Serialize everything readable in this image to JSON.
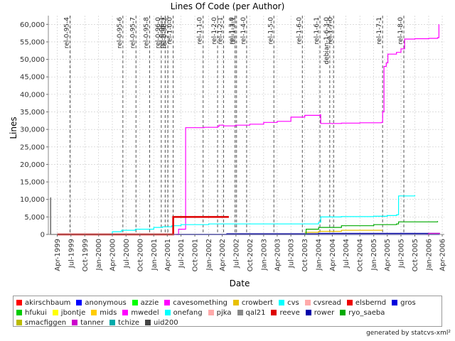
{
  "chart_data": {
    "type": "line",
    "title": "Lines Of Code (per Author)",
    "xlabel": "Date",
    "ylabel": "Lines",
    "ylim": [
      0,
      62500
    ],
    "xlim": [
      "1999-02-01",
      "2006-04-15"
    ],
    "y_ticks": [
      0,
      5000,
      10000,
      15000,
      20000,
      25000,
      30000,
      35000,
      40000,
      45000,
      50000,
      55000,
      60000
    ],
    "y_tick_labels": [
      "0",
      "5,000",
      "10,000",
      "15,000",
      "20,000",
      "25,000",
      "30,000",
      "35,000",
      "40,000",
      "45,000",
      "50,000",
      "55,000",
      "60,000"
    ],
    "x_ticks": [
      "1999-04-01",
      "1999-07-01",
      "1999-10-01",
      "2000-01-01",
      "2000-04-01",
      "2000-07-01",
      "2000-10-01",
      "2001-01-01",
      "2001-04-01",
      "2001-07-01",
      "2001-10-01",
      "2002-01-01",
      "2002-04-01",
      "2002-07-01",
      "2002-10-01",
      "2003-01-01",
      "2003-04-01",
      "2003-07-01",
      "2003-10-01",
      "2004-01-01",
      "2004-04-01",
      "2004-07-01",
      "2004-10-01",
      "2005-01-01",
      "2005-04-01",
      "2005-07-01",
      "2005-10-01",
      "2006-01-01",
      "2006-04-01"
    ],
    "x_tick_labels": [
      "Apr-1999",
      "Jul-1999",
      "Oct-1999",
      "Jan-2000",
      "Apr-2000",
      "Jul-2000",
      "Oct-2000",
      "Jan-2001",
      "Apr-2001",
      "Jul-2001",
      "Oct-2001",
      "Jan-2002",
      "Apr-2002",
      "Jul-2002",
      "Oct-2002",
      "Jan-2003",
      "Apr-2003",
      "Jul-2003",
      "Oct-2003",
      "Jan-2004",
      "Apr-2004",
      "Jul-2004",
      "Oct-2004",
      "Jan-2005",
      "Apr-2005",
      "Jul-2005",
      "Oct-2005",
      "Jan-2006",
      "Apr-2006"
    ],
    "grid": true,
    "legend_position": "bottom",
    "markers": [
      {
        "label": "rel-0-95-4",
        "date": "1999-06-25"
      },
      {
        "label": "rel-0-95-6",
        "date": "2000-06-10"
      },
      {
        "label": "rel-0-95-7",
        "date": "2000-09-05"
      },
      {
        "label": "rel-0-95-8",
        "date": "2000-12-05"
      },
      {
        "label": "rel-0-96-0",
        "date": "2001-02-20"
      },
      {
        "label": "rel-0-96-1",
        "date": "2001-03-18"
      },
      {
        "label": "rel-0-96-2",
        "date": "2001-04-05"
      },
      {
        "label": "rel-1-0-0",
        "date": "2001-05-10"
      },
      {
        "label": "rel-1-1-0",
        "date": "2001-11-25"
      },
      {
        "label": "rel-1-2-0",
        "date": "2002-03-01"
      },
      {
        "label": "rel-1-2-1",
        "date": "2002-04-10"
      },
      {
        "label": "rel-1-3-0",
        "date": "2002-06-25"
      },
      {
        "label": "rel-1-3-1",
        "date": "2002-07-05"
      },
      {
        "label": "rel-1-4-0",
        "date": "2002-09-10"
      },
      {
        "label": "rel-1-5-0",
        "date": "2003-03-10"
      },
      {
        "label": "rel-1-6-0",
        "date": "2003-09-15"
      },
      {
        "label": "rel-1-6-1",
        "date": "2004-01-10"
      },
      {
        "label": "debian-1-6-3-0",
        "date": "2004-03-15"
      },
      {
        "label": "rel-1-7-0",
        "date": "2004-04-10"
      },
      {
        "label": "rel-1-7-1",
        "date": "2005-03-01"
      },
      {
        "label": "rel-1-8-0",
        "date": "2005-07-20"
      }
    ],
    "series": [
      {
        "name": "akirschbaum",
        "color": "#ff0000",
        "points": []
      },
      {
        "name": "anonymous",
        "color": "#0000ff",
        "points": [
          [
            "1999-04-01",
            0
          ],
          [
            "2006-03-15",
            0
          ]
        ]
      },
      {
        "name": "azzie",
        "color": "#00ff00",
        "points": []
      },
      {
        "name": "cavesomething",
        "color": "#ff00ff",
        "points": []
      },
      {
        "name": "crowbert",
        "color": "#e8c000",
        "points": [
          [
            "2003-10-01",
            600
          ],
          [
            "2004-01-01",
            900
          ],
          [
            "2004-06-01",
            1200
          ],
          [
            "2005-03-01",
            1200
          ]
        ]
      },
      {
        "name": "cvs",
        "color": "#00ffff",
        "points": []
      },
      {
        "name": "cvsread",
        "color": "#ffaaaa",
        "points": []
      },
      {
        "name": "elsbernd",
        "color": "#ee0000",
        "points": []
      },
      {
        "name": "gros",
        "color": "#0000dd",
        "points": [
          [
            "1999-04-01",
            0
          ],
          [
            "2006-03-15",
            0
          ]
        ]
      },
      {
        "name": "hfukui",
        "color": "#00cc00",
        "points": []
      },
      {
        "name": "jbontje",
        "color": "#ffff00",
        "points": []
      },
      {
        "name": "mids",
        "color": "#ffcc00",
        "points": []
      },
      {
        "name": "mwedel",
        "color": "#ff00ff",
        "points": [
          [
            "1999-04-01",
            0
          ],
          [
            "2001-06-01",
            0
          ],
          [
            "2001-06-15",
            1500
          ],
          [
            "2001-08-01",
            30500
          ],
          [
            "2001-12-01",
            30600
          ],
          [
            "2002-03-01",
            30800
          ],
          [
            "2002-03-10",
            31200
          ],
          [
            "2002-04-10",
            31000
          ],
          [
            "2002-07-01",
            31200
          ],
          [
            "2002-10-01",
            31500
          ],
          [
            "2003-01-01",
            32000
          ],
          [
            "2003-04-01",
            32300
          ],
          [
            "2003-07-01",
            33500
          ],
          [
            "2003-10-01",
            34000
          ],
          [
            "2004-01-10",
            34200
          ],
          [
            "2004-01-15",
            31700
          ],
          [
            "2004-06-01",
            31800
          ],
          [
            "2004-10-01",
            31900
          ],
          [
            "2005-02-20",
            32000
          ],
          [
            "2005-03-01",
            35000
          ],
          [
            "2005-03-10",
            48000
          ],
          [
            "2005-03-25",
            49000
          ],
          [
            "2005-04-05",
            51500
          ],
          [
            "2005-06-01",
            52000
          ],
          [
            "2005-07-01",
            53000
          ],
          [
            "2005-07-25",
            55800
          ],
          [
            "2005-10-01",
            55900
          ],
          [
            "2006-01-01",
            56000
          ],
          [
            "2006-03-01",
            56200
          ],
          [
            "2006-03-10",
            60000
          ]
        ]
      },
      {
        "name": "onefang",
        "color": "#00ffff",
        "points": [
          [
            "1999-04-01",
            0
          ],
          [
            "2000-03-15",
            0
          ],
          [
            "2000-04-01",
            800
          ],
          [
            "2000-06-01",
            1200
          ],
          [
            "2000-09-01",
            1500
          ],
          [
            "2001-01-01",
            2000
          ],
          [
            "2001-03-01",
            2200
          ],
          [
            "2001-05-01",
            2500
          ],
          [
            "2001-07-01",
            2800
          ],
          [
            "2002-01-01",
            3000
          ],
          [
            "2003-06-01",
            3000
          ],
          [
            "2004-01-01",
            3500
          ],
          [
            "2004-01-15",
            5000
          ],
          [
            "2004-06-01",
            5100
          ],
          [
            "2005-01-01",
            5200
          ],
          [
            "2005-04-01",
            5400
          ],
          [
            "2005-06-01",
            5600
          ],
          [
            "2005-06-15",
            11000
          ],
          [
            "2005-10-01",
            11200
          ]
        ]
      },
      {
        "name": "pjka",
        "color": "#ffaaaa",
        "points": []
      },
      {
        "name": "qal21",
        "color": "#888888",
        "points": []
      },
      {
        "name": "reeve",
        "color": "#dd0000",
        "points": [
          [
            "1999-04-01",
            0
          ],
          [
            "2001-04-20",
            0
          ],
          [
            "2001-05-10",
            5000
          ],
          [
            "2002-05-15",
            5000
          ]
        ]
      },
      {
        "name": "rower",
        "color": "#0000aa",
        "points": [
          [
            "2001-06-01",
            0
          ],
          [
            "2002-05-01",
            200
          ],
          [
            "2004-01-01",
            300
          ],
          [
            "2006-03-15",
            300
          ]
        ]
      },
      {
        "name": "ryo_saeba",
        "color": "#00aa00",
        "points": [
          [
            "2003-10-01",
            0
          ],
          [
            "2003-10-10",
            1500
          ],
          [
            "2004-01-01",
            2000
          ],
          [
            "2004-06-01",
            2500
          ],
          [
            "2005-01-01",
            2800
          ],
          [
            "2005-06-01",
            3000
          ],
          [
            "2005-06-15",
            3600
          ],
          [
            "2006-03-01",
            3800
          ]
        ]
      },
      {
        "name": "smacfiggen",
        "color": "#bbbb00",
        "points": []
      },
      {
        "name": "tanner",
        "color": "#cc00cc",
        "points": [
          [
            "2005-12-15",
            0
          ],
          [
            "2006-01-01",
            300
          ],
          [
            "2006-03-15",
            200
          ]
        ]
      },
      {
        "name": "tchize",
        "color": "#00aaaa",
        "points": []
      },
      {
        "name": "uid200",
        "color": "#444444",
        "points": [
          [
            "1999-02-15",
            10500
          ],
          [
            "1999-02-16",
            0
          ],
          [
            "1999-04-01",
            0
          ]
        ]
      }
    ]
  },
  "footer": "generated by statcvs-xml²"
}
